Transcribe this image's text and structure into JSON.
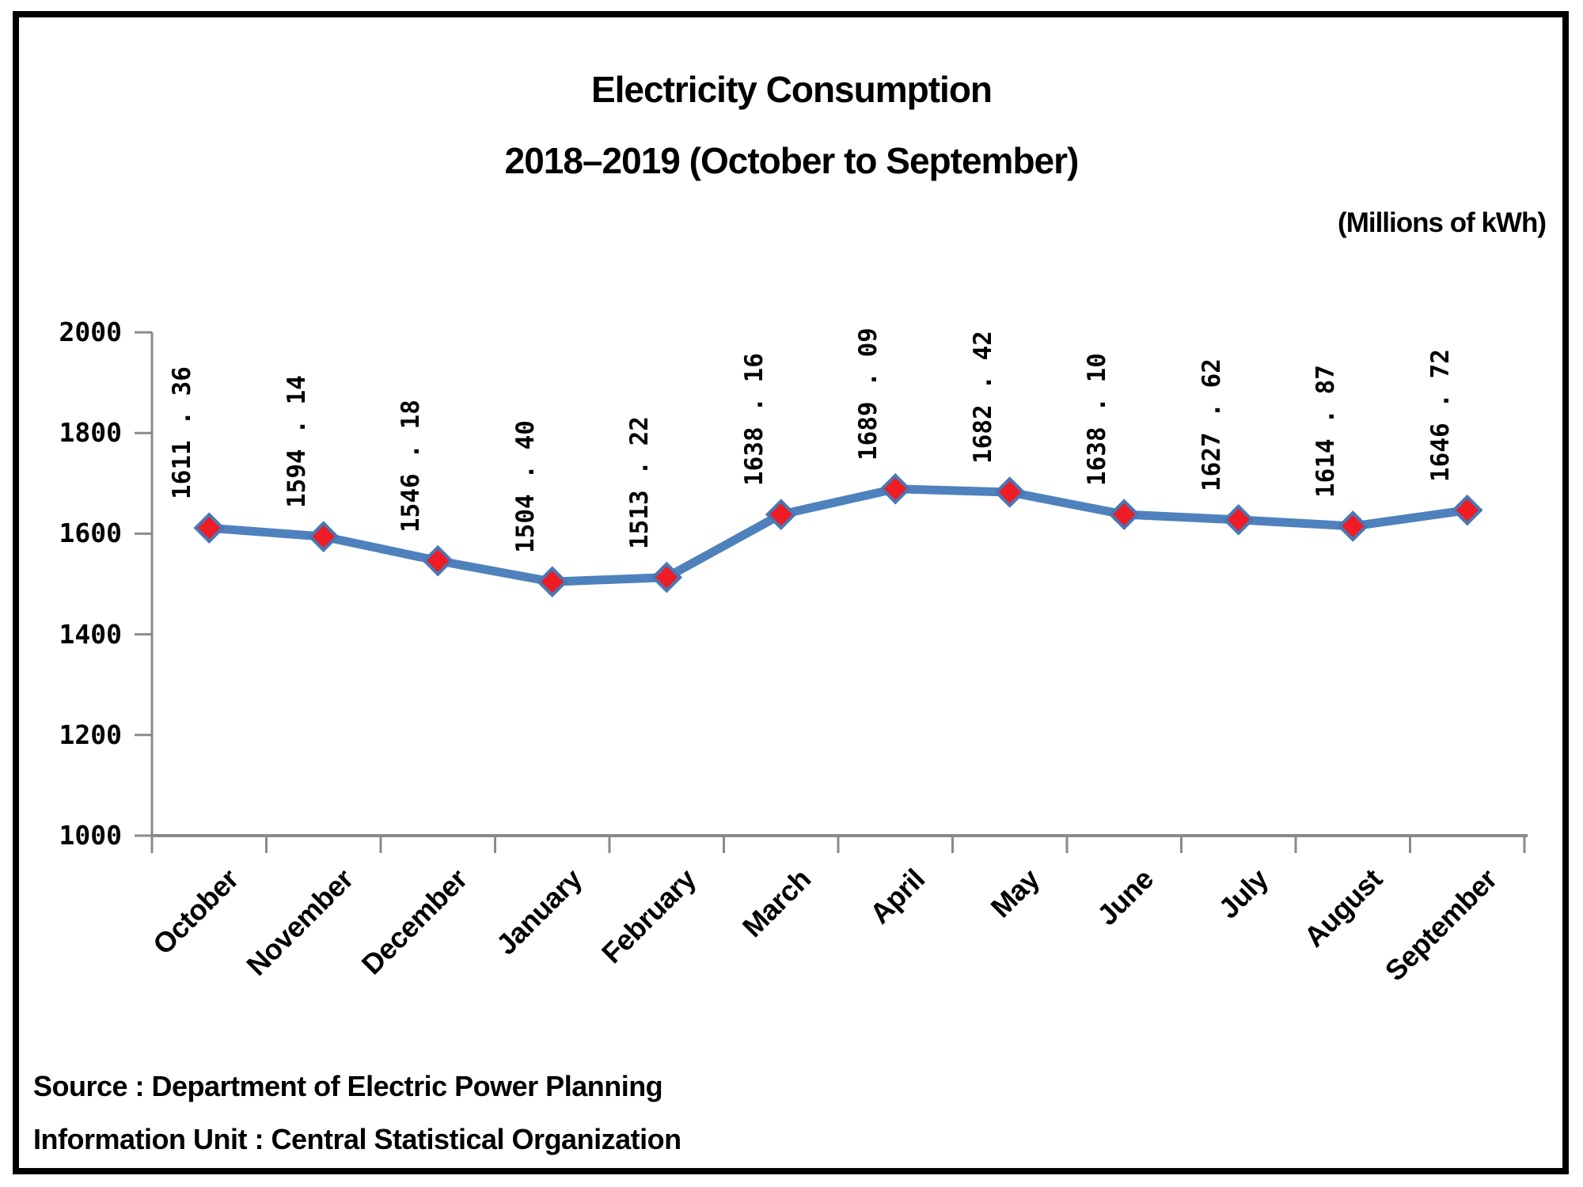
{
  "title": "Electricity Consumption",
  "subtitle": "2018–2019 (October to September)",
  "units_note": "(Millions of kWh)",
  "footer": {
    "source": "Source : Department of Electric Power Planning",
    "info_unit": "Information Unit : Central Statistical Organization"
  },
  "chart_data": {
    "type": "line",
    "title": "Electricity Consumption",
    "subtitle": "2018–2019 (October to September)",
    "units": "Millions of kWh",
    "categories": [
      "October",
      "November",
      "December",
      "January",
      "February",
      "March",
      "April",
      "May",
      "June",
      "July",
      "August",
      "September"
    ],
    "series": [
      {
        "name": "Electricity Consumption",
        "values": [
          1611.36,
          1594.14,
          1546.18,
          1504.4,
          1513.22,
          1638.16,
          1689.09,
          1682.42,
          1638.1,
          1627.62,
          1614.87,
          1646.72
        ]
      }
    ],
    "point_labels": [
      "1611 . 36",
      "1594 . 14",
      "1546 . 18",
      "1504 . 40",
      "1513 . 22",
      "1638 . 16",
      "1689 . 09",
      "1682 . 42",
      "1638 . 10",
      "1627 . 62",
      "1614 . 87",
      "1646 . 72"
    ],
    "ylim": [
      1000,
      2000
    ],
    "yticks": [
      1000,
      1200,
      1400,
      1600,
      1800,
      2000
    ],
    "grid": "off",
    "legend": "none",
    "marker": "diamond",
    "colors": {
      "line": "#4f81bd",
      "marker_fill": "#ee1c25",
      "marker_stroke": "#4878b6",
      "axis": "#8a8a8a",
      "text": "#000000"
    }
  }
}
